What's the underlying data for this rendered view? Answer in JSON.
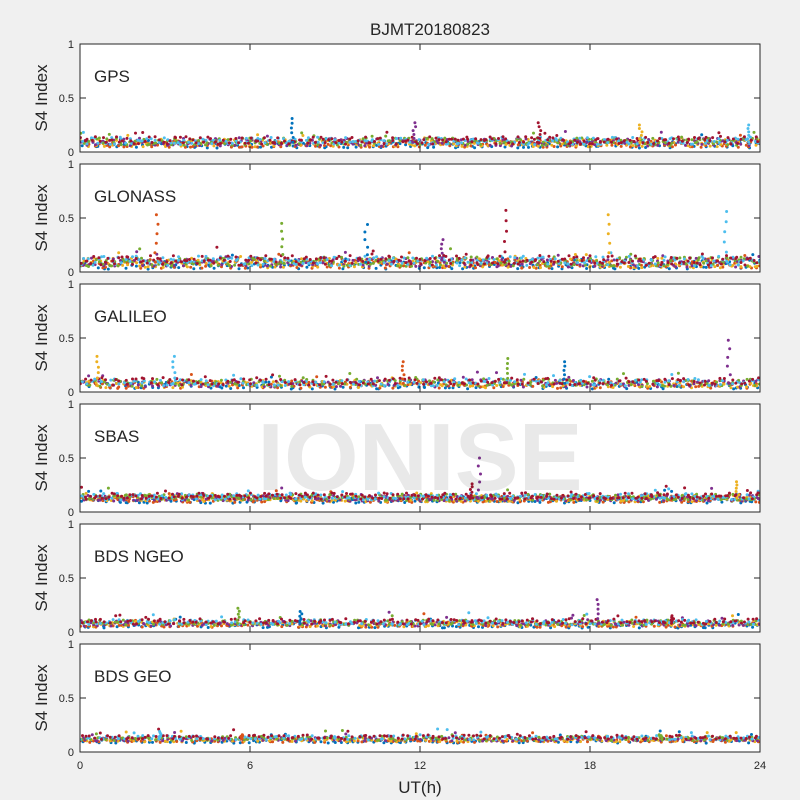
{
  "chart_data": {
    "type": "scatter",
    "title": "BJMT20180823",
    "xlabel": "UT(h)",
    "ylabel": "S4 Index",
    "xlim": [
      0,
      24
    ],
    "ylim": [
      0,
      1
    ],
    "xticks": [
      0,
      6,
      12,
      18,
      24
    ],
    "xtick_labels": [
      "0",
      "6",
      "12",
      "18",
      "24"
    ],
    "yticks": [
      0,
      0.5,
      1
    ],
    "ytick_labels": [
      "0",
      "0.5",
      "1"
    ],
    "grid": false,
    "watermark": "IONISE",
    "series_colors": [
      "#0072bd",
      "#d95319",
      "#edb120",
      "#7e2f8e",
      "#77ac30",
      "#4dbeee",
      "#a2142f"
    ],
    "panels": [
      {
        "label": "GPS",
        "baseline": 0.09,
        "spread": 0.035,
        "points_per_series": 200,
        "peaks": [
          {
            "x": 7.5,
            "y": 0.31
          },
          {
            "x": 11.8,
            "y": 0.27
          },
          {
            "x": 16.2,
            "y": 0.27
          },
          {
            "x": 19.8,
            "y": 0.25
          },
          {
            "x": 23.6,
            "y": 0.25
          }
        ]
      },
      {
        "label": "GLONASS",
        "baseline": 0.09,
        "spread": 0.045,
        "points_per_series": 200,
        "peaks": [
          {
            "x": 2.7,
            "y": 0.53
          },
          {
            "x": 7.1,
            "y": 0.45
          },
          {
            "x": 10.1,
            "y": 0.44
          },
          {
            "x": 12.8,
            "y": 0.3
          },
          {
            "x": 15.0,
            "y": 0.57
          },
          {
            "x": 18.7,
            "y": 0.53
          },
          {
            "x": 22.8,
            "y": 0.56
          }
        ]
      },
      {
        "label": "GALILEO",
        "baseline": 0.08,
        "spread": 0.035,
        "points_per_series": 160,
        "peaks": [
          {
            "x": 0.6,
            "y": 0.33
          },
          {
            "x": 3.3,
            "y": 0.33
          },
          {
            "x": 11.4,
            "y": 0.28
          },
          {
            "x": 15.1,
            "y": 0.31
          },
          {
            "x": 17.1,
            "y": 0.28
          },
          {
            "x": 22.9,
            "y": 0.48
          }
        ]
      },
      {
        "label": "SBAS",
        "baseline": 0.13,
        "spread": 0.03,
        "points_per_series": 220,
        "peaks": [
          {
            "x": 14.1,
            "y": 0.5
          },
          {
            "x": 13.8,
            "y": 0.26
          },
          {
            "x": 23.2,
            "y": 0.28
          }
        ]
      },
      {
        "label": "BDS NGEO",
        "baseline": 0.08,
        "spread": 0.025,
        "points_per_series": 170,
        "peaks": [
          {
            "x": 5.6,
            "y": 0.22
          },
          {
            "x": 7.8,
            "y": 0.19
          },
          {
            "x": 18.3,
            "y": 0.3
          },
          {
            "x": 20.9,
            "y": 0.15
          }
        ]
      },
      {
        "label": "BDS GEO",
        "baseline": 0.12,
        "spread": 0.02,
        "points_per_series": 160,
        "peaks": [
          {
            "x": 2.8,
            "y": 0.19
          },
          {
            "x": 5.7,
            "y": 0.16
          },
          {
            "x": 20.5,
            "y": 0.16
          }
        ]
      }
    ]
  }
}
